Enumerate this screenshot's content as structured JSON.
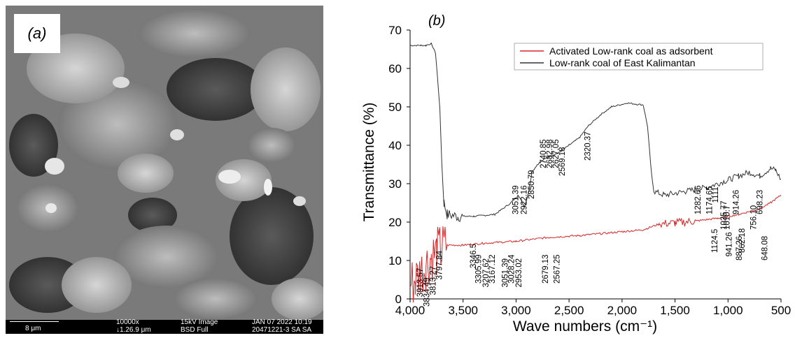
{
  "panel_a": {
    "label": "(a)",
    "scale_bar": "8 μm",
    "magnification": "10000x",
    "hfw": "↓1.26.9 μm",
    "voltage_mode": "15kV Image",
    "detector": "BSD Full",
    "date": "JAN 07 2022 10:19",
    "sample_id": "20471221-3 SA SA"
  },
  "chart_data": {
    "type": "line",
    "label": "(b)",
    "xlabel": "Wave numbers (cm⁻¹)",
    "ylabel": "Transmittance (%)",
    "xlim": [
      4000,
      500
    ],
    "ylim": [
      0,
      70
    ],
    "x_ticks": [
      "4,000",
      "3,500",
      "3,000",
      "2,500",
      "2,000",
      "1,500",
      "1,000",
      "500"
    ],
    "x_tick_values": [
      4000,
      3500,
      3000,
      2500,
      2000,
      1500,
      1000,
      500
    ],
    "y_ticks": [
      "0",
      "10",
      "20",
      "30",
      "40",
      "50",
      "60",
      "70"
    ],
    "y_tick_values": [
      0,
      10,
      20,
      30,
      40,
      50,
      60,
      70
    ],
    "legend_position": "top-right",
    "series": [
      {
        "name": "Activated Low-rank coal as adsorbent",
        "color": "#d62728",
        "points": [
          [
            4000,
            4
          ],
          [
            3950,
            5
          ],
          [
            3900,
            7
          ],
          [
            3850,
            9
          ],
          [
            3800,
            11
          ],
          [
            3750,
            12
          ],
          [
            3700,
            13
          ],
          [
            3650,
            14
          ],
          [
            3500,
            14
          ],
          [
            3300,
            14.5
          ],
          [
            3000,
            15
          ],
          [
            2700,
            16
          ],
          [
            2400,
            16.5
          ],
          [
            2000,
            17.5
          ],
          [
            1800,
            18
          ],
          [
            1650,
            19.5
          ],
          [
            1500,
            19.8
          ],
          [
            1300,
            20.3
          ],
          [
            1100,
            21
          ],
          [
            900,
            22
          ],
          [
            700,
            23.5
          ],
          [
            600,
            25
          ],
          [
            500,
            27
          ]
        ]
      },
      {
        "name": "Low-rank coal of East Kalimantan",
        "color": "#333333",
        "points": [
          [
            4000,
            66
          ],
          [
            3900,
            66
          ],
          [
            3850,
            66
          ],
          [
            3800,
            66.5
          ],
          [
            3760,
            64
          ],
          [
            3720,
            50
          ],
          [
            3700,
            35
          ],
          [
            3680,
            25
          ],
          [
            3650,
            22
          ],
          [
            3550,
            21.5
          ],
          [
            3400,
            21.5
          ],
          [
            3200,
            22
          ],
          [
            3050,
            25
          ],
          [
            2980,
            27
          ],
          [
            2920,
            24
          ],
          [
            2880,
            28
          ],
          [
            2850,
            33
          ],
          [
            2800,
            35
          ],
          [
            2700,
            37
          ],
          [
            2600,
            38
          ],
          [
            2500,
            40
          ],
          [
            2400,
            42
          ],
          [
            2320,
            45
          ],
          [
            2200,
            48
          ],
          [
            2100,
            50
          ],
          [
            1950,
            51
          ],
          [
            1800,
            50.5
          ],
          [
            1760,
            45
          ],
          [
            1720,
            32
          ],
          [
            1700,
            28
          ],
          [
            1600,
            27
          ],
          [
            1400,
            28
          ],
          [
            1200,
            29
          ],
          [
            1000,
            31
          ],
          [
            900,
            32
          ],
          [
            800,
            33
          ],
          [
            700,
            32
          ],
          [
            600,
            34
          ],
          [
            550,
            33.5
          ],
          [
            500,
            31
          ]
        ]
      }
    ],
    "annotations_black": [
      {
        "text": "3051.39",
        "x": 2980,
        "y": 22
      },
      {
        "text": "2922.16",
        "x": 2900,
        "y": 22
      },
      {
        "text": "2850.79",
        "x": 2830,
        "y": 26
      },
      {
        "text": "2740.85",
        "x": 2720,
        "y": 34
      },
      {
        "text": "2682.98",
        "x": 2660,
        "y": 34
      },
      {
        "text": "2627.05",
        "x": 2600,
        "y": 34
      },
      {
        "text": "2569.18",
        "x": 2540,
        "y": 32
      },
      {
        "text": "2320.37",
        "x": 2300,
        "y": 36
      },
      {
        "text": "1282.66",
        "x": 1260,
        "y": 22
      },
      {
        "text": "1174.65",
        "x": 1150,
        "y": 22
      },
      {
        "text": "1111",
        "x": 1095,
        "y": 25
      },
      {
        "text": "1124.5",
        "x": 1100,
        "y": 12
      },
      {
        "text": "1035.77",
        "x": 1015,
        "y": 18
      },
      {
        "text": "1010.7",
        "x": 985,
        "y": 18
      },
      {
        "text": "941.26",
        "x": 965,
        "y": 11
      },
      {
        "text": "914.26",
        "x": 900,
        "y": 22
      },
      {
        "text": "887.26",
        "x": 870,
        "y": 10
      },
      {
        "text": "862.18",
        "x": 845,
        "y": 12
      },
      {
        "text": "756.10",
        "x": 735,
        "y": 18
      },
      {
        "text": "698.23",
        "x": 675,
        "y": 22
      },
      {
        "text": "648.08",
        "x": 630,
        "y": 10
      }
    ],
    "annotations_red": [
      {
        "text": "3913.57",
        "x": 3880,
        "y": 0.5
      },
      {
        "text": "3834.49",
        "x": 3820,
        "y": -2
      },
      {
        "text": "3813.27",
        "x": 3760,
        "y": 1
      },
      {
        "text": "3797.84",
        "x": 3700,
        "y": 5
      },
      {
        "text": "3346.5",
        "x": 3380,
        "y": 8
      },
      {
        "text": "3305.99",
        "x": 3330,
        "y": 4
      },
      {
        "text": "3207.62",
        "x": 3260,
        "y": 3
      },
      {
        "text": "3167.12",
        "x": 3200,
        "y": 4
      },
      {
        "text": "3051.39",
        "x": 3080,
        "y": 3
      },
      {
        "text": "3028.24",
        "x": 3020,
        "y": 4
      },
      {
        "text": "2953.02",
        "x": 2950,
        "y": 3
      },
      {
        "text": "2679.13",
        "x": 2700,
        "y": 4
      },
      {
        "text": "2567.25",
        "x": 2590,
        "y": 4
      }
    ]
  }
}
